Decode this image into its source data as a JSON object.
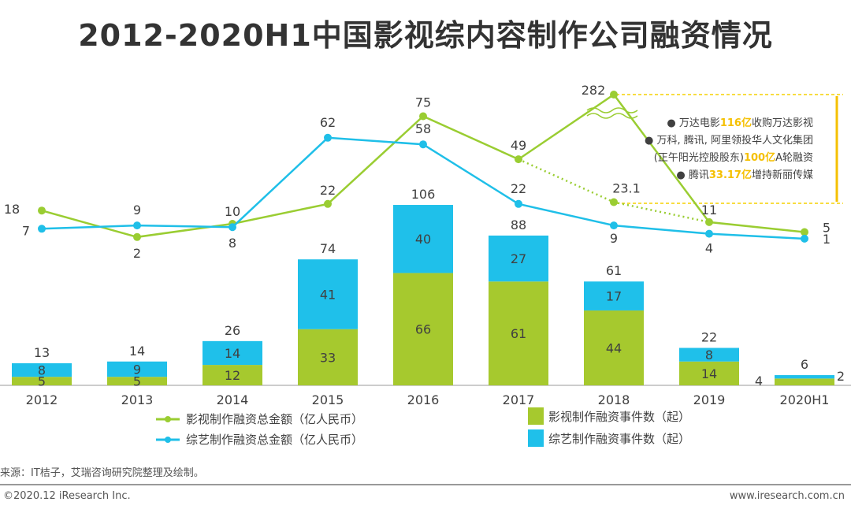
{
  "title": "2012-2020H1中国影视综内容制作公司融资情况",
  "chart_data": {
    "type": "bar+line",
    "categories": [
      "2012",
      "2013",
      "2014",
      "2015",
      "2016",
      "2017",
      "2018",
      "2019",
      "2020H1"
    ],
    "bar_series": [
      {
        "name": "影视制作融资事件数（起）",
        "values": [
          5,
          5,
          12,
          33,
          66,
          61,
          44,
          14,
          4
        ],
        "color": "#a6c92e"
      },
      {
        "name": "综艺制作融资事件数（起）",
        "values": [
          8,
          9,
          14,
          41,
          40,
          27,
          17,
          8,
          2
        ],
        "color": "#1fc0ea"
      }
    ],
    "bar_totals": [
      13,
      14,
      26,
      74,
      106,
      88,
      61,
      22,
      6
    ],
    "line_series": [
      {
        "name": "影视制作融资总金额（亿人民币）",
        "values": [
          18,
          2,
          10,
          22,
          75,
          49,
          282,
          11,
          5
        ],
        "color": "#9acd32"
      },
      {
        "name": "综艺制作融资总金额（亿人民币）",
        "values": [
          7,
          9,
          8,
          62,
          58,
          22,
          9,
          4,
          1
        ],
        "color": "#1fbfe8"
      }
    ],
    "line_alt_2018": {
      "label": "23.1",
      "value": 23.1
    },
    "annotation": [
      {
        "pre": "万达电影",
        "hl": "116亿",
        "post": "收购万达影视"
      },
      {
        "pre": "万科, 腾讯, 阿里领投华人文化集团",
        "hl": "",
        "post": ""
      },
      {
        "pre": "(正午阳光控股股东)",
        "hl": "100亿",
        "post": "A轮融资"
      },
      {
        "pre": "腾讯",
        "hl": "33.17亿",
        "post": "增持新丽传媒"
      }
    ]
  },
  "legend": {
    "line1": "影视制作融资总金额（亿人民币）",
    "line2": "综艺制作融资总金额（亿人民币）",
    "bar1": "影视制作融资事件数（起）",
    "bar2": "综艺制作融资事件数（起）"
  },
  "source": "来源：IT桔子，艾瑞咨询研究院整理及绘制。",
  "footer": {
    "left": "©2020.12 iResearch Inc.",
    "right": "www.iresearch.com.cn"
  }
}
